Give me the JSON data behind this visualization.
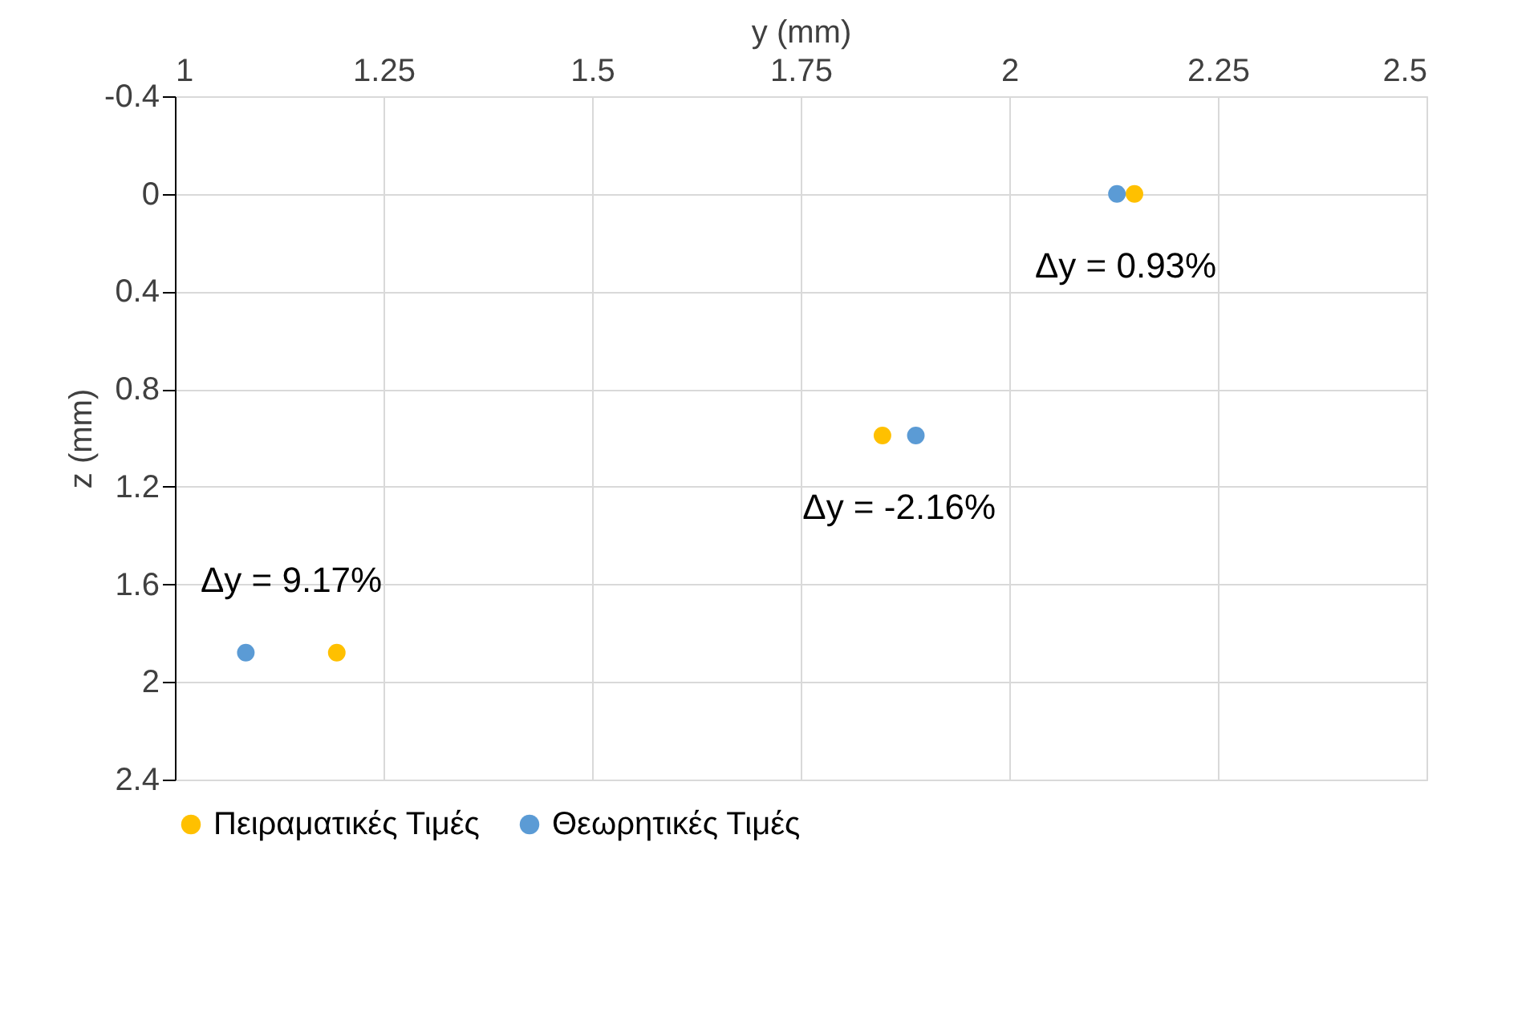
{
  "chart_data": {
    "type": "scatter",
    "xlabel": "y (mm)",
    "ylabel": "z (mm)",
    "xlim": [
      1,
      2.5
    ],
    "xticks": [
      1,
      1.25,
      1.5,
      1.75,
      2,
      2.25,
      2.5
    ],
    "ylim": [
      2.4,
      -0.4
    ],
    "yticks": [
      -0.4,
      0,
      0.4,
      0.8,
      1.2,
      1.6,
      2,
      2.4
    ],
    "grid": true,
    "legend": "bottom",
    "marker": "circle",
    "series": [
      {
        "name": "Πειραματικές Τιμές",
        "color": "#ffc000",
        "x": [
          2.15,
          1.848,
          1.194
        ],
        "values": [
          0,
          0.99,
          1.88
        ]
      },
      {
        "name": "Θεωρητικές Τιμές",
        "color": "#5b9bd5",
        "x": [
          2.129,
          1.888,
          1.085
        ],
        "values": [
          0,
          0.99,
          1.88
        ]
      }
    ],
    "annotations": [
      "Δy = 0.93%",
      "Δy = -2.16%",
      "Δy = 9.17%"
    ]
  }
}
